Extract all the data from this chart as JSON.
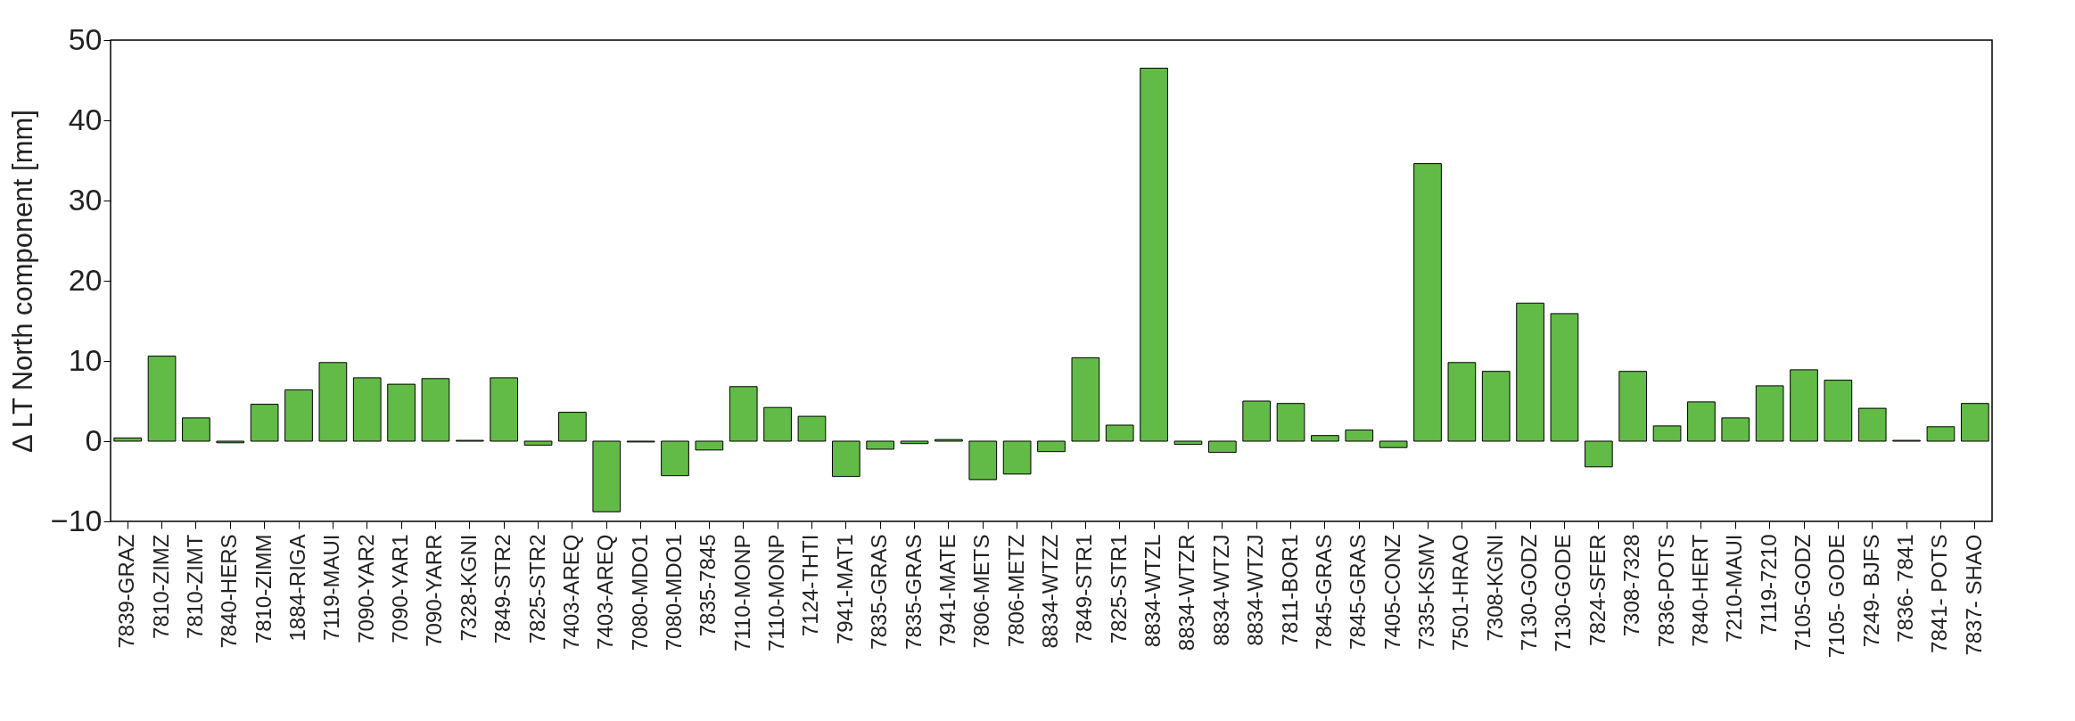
{
  "chart_data": {
    "type": "bar",
    "ylabel": "Δ LT North component [mm]",
    "categories": [
      "7839-GRAZ",
      "7810-ZIMZ",
      "7810-ZIMT",
      "7840-HERS",
      "7810-ZIMM",
      "1884-RIGA",
      "7119-MAUI",
      "7090-YAR2",
      "7090-YAR1",
      "7090-YARR",
      "7328-KGNI",
      "7849-STR2",
      "7825-STR2",
      "7403-AREQ",
      "7403-AREQ",
      "7080-MDO1",
      "7080-MDO1",
      "7835-7845",
      "7110-MONP",
      "7110-MONP",
      "7124-THTI",
      "7941-MAT1",
      "7835-GRAS",
      "7835-GRAS",
      "7941-MATE",
      "7806-METS",
      "7806-METZ",
      "8834-WTZZ",
      "7849-STR1",
      "7825-STR1",
      "8834-WTZL",
      "8834-WTZR",
      "8834-WTZJ",
      "8834-WTZJ",
      "7811-BOR1",
      "7845-GRAS",
      "7845-GRAS",
      "7405-CONZ",
      "7335-KSMV",
      "7501-HRAO",
      "7308-KGNI",
      "7130-GODZ",
      "7130-GODE",
      "7824-SFER",
      "7308-7328",
      "7836-POTS",
      "7840-HERT",
      "7210-MAUI",
      "7119-7210",
      "7105-GODZ",
      "7105- GODE",
      "7249- BJFS",
      "7836- 7841",
      "7841- POTS",
      "7837- SHAO"
    ],
    "values": [
      0.4,
      10.6,
      2.9,
      -0.2,
      4.6,
      6.4,
      9.8,
      7.9,
      7.1,
      7.8,
      0.1,
      7.9,
      -0.5,
      3.6,
      -8.8,
      -0.1,
      -4.3,
      -1.1,
      6.8,
      4.2,
      3.1,
      -4.4,
      -1.0,
      -0.3,
      0.2,
      -4.8,
      -4.1,
      -1.3,
      10.4,
      2.0,
      46.5,
      -0.4,
      -1.4,
      5.0,
      4.7,
      0.7,
      1.4,
      -0.8,
      34.6,
      9.8,
      8.7,
      17.2,
      15.9,
      -3.2,
      8.7,
      1.9,
      4.9,
      2.9,
      6.9,
      8.9,
      7.6,
      4.1,
      0.1,
      1.8,
      4.7
    ],
    "color": "#62bb46",
    "ylim": [
      -10,
      50
    ],
    "yticks": [
      -10,
      0,
      10,
      20,
      30,
      40,
      50
    ],
    "grid": false
  }
}
